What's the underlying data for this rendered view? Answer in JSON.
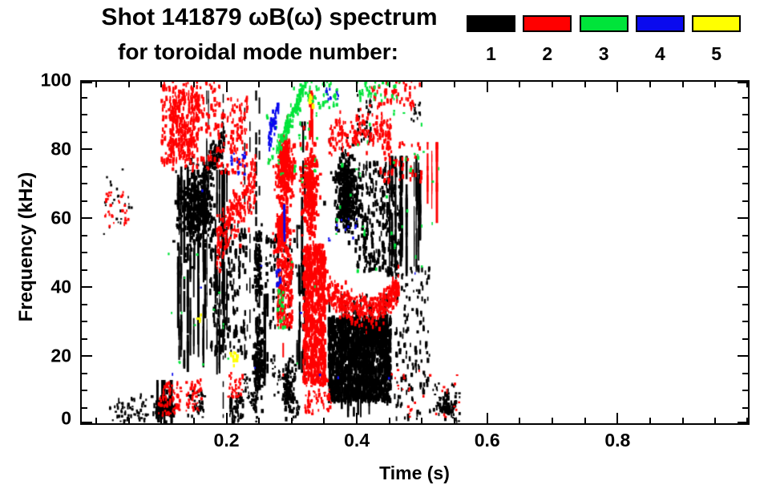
{
  "title": {
    "line1": "Shot 141879 ωB(ω) spectrum",
    "line2": "for toroidal mode number:"
  },
  "legend": {
    "modes": [
      {
        "label": "1",
        "color": "#000000"
      },
      {
        "label": "2",
        "color": "#ff0000"
      },
      {
        "label": "3",
        "color": "#00e43a"
      },
      {
        "label": "4",
        "color": "#0a0aee"
      },
      {
        "label": "5",
        "color": "#ffff00"
      }
    ]
  },
  "chart_data": {
    "type": "scatter",
    "title": "Shot 141879 ωB(ω) spectrum for toroidal mode number",
    "xlabel": "Time (s)",
    "ylabel": "Frequency (kHz)",
    "xlim": [
      -0.0245,
      1.0025
    ],
    "ylim": [
      0,
      100
    ],
    "x_major_ticks": [
      0.2,
      0.4,
      0.6,
      0.8
    ],
    "x_tick_labels": [
      "0.2",
      "0.4",
      "0.6",
      "0.8"
    ],
    "x_minor_step": 0.05,
    "x_minor_range": [
      0,
      1.0
    ],
    "y_major_ticks": [
      0,
      20,
      40,
      60,
      80,
      100
    ],
    "y_tick_labels": [
      "0",
      "20",
      "40",
      "60",
      "80",
      "100"
    ],
    "y_minor_step": 5,
    "grid": false,
    "legend_position": "top",
    "series": [
      {
        "name": "n=1",
        "color": "#000000"
      },
      {
        "name": "n=2",
        "color": "#ff0000"
      },
      {
        "name": "n=3",
        "color": "#00e43a"
      },
      {
        "name": "n=4",
        "color": "#0a0aee"
      },
      {
        "name": "n=5",
        "color": "#ffff00"
      }
    ],
    "clusters": [
      {
        "m": 1,
        "s": "sp",
        "t": [
          0.02,
          0.08
        ],
        "f": [
          1,
          8
        ],
        "n": 50,
        "h": [
          2,
          5
        ]
      },
      {
        "m": 1,
        "s": "sp",
        "t": [
          0.012,
          0.055
        ],
        "f": [
          55,
          75
        ],
        "n": 20,
        "h": [
          2,
          4
        ]
      },
      {
        "m": 1,
        "s": "vs",
        "t": [
          0.088,
          0.12
        ],
        "f": [
          0,
          13
        ],
        "cols": 7,
        "segs": 5
      },
      {
        "m": 1,
        "s": "bl",
        "t": [
          0.09,
          0.118
        ],
        "f": [
          1,
          8
        ],
        "n": 130
      },
      {
        "m": 1,
        "s": "vs",
        "t": [
          0.125,
          0.205
        ],
        "f": [
          14,
          74
        ],
        "cols": 26,
        "segs": 7
      },
      {
        "m": 1,
        "s": "bl",
        "t": [
          0.128,
          0.178
        ],
        "f": [
          52,
          74
        ],
        "n": 420
      },
      {
        "m": 1,
        "s": "sp",
        "t": [
          0.175,
          0.232
        ],
        "f": [
          20,
          58
        ],
        "n": 150,
        "h": [
          4,
          9
        ]
      },
      {
        "m": 1,
        "s": "dg",
        "t": [
          0.162,
          0.197
        ],
        "f": [
          70,
          84
        ],
        "n": 130,
        "j": 2.5,
        "h": [
          3,
          6
        ]
      },
      {
        "m": 1,
        "s": "vl",
        "t": [
          0.195
        ],
        "f": [
          2,
          96
        ],
        "w": 1.5,
        "g": 0.35
      },
      {
        "m": 1,
        "s": "sp",
        "t": [
          0.205,
          0.226
        ],
        "f": [
          1,
          9
        ],
        "n": 50,
        "h": [
          3,
          6
        ]
      },
      {
        "m": 1,
        "s": "dg",
        "t": [
          0.225,
          0.247
        ],
        "f": [
          14,
          4
        ],
        "n": 40,
        "j": 2,
        "h": [
          2,
          5
        ]
      },
      {
        "m": 1,
        "s": "vl",
        "t": [
          0.2455
        ],
        "f": [
          3,
          97
        ],
        "w": 2.5,
        "g": 0.15
      },
      {
        "m": 1,
        "s": "vl",
        "t": [
          0.2505
        ],
        "f": [
          3,
          95
        ],
        "w": 2,
        "g": 0.2
      },
      {
        "m": 1,
        "s": "bl",
        "t": [
          0.242,
          0.258
        ],
        "f": [
          6,
          30
        ],
        "n": 130
      },
      {
        "m": 1,
        "s": "bl",
        "t": [
          0.243,
          0.254
        ],
        "f": [
          33,
          58
        ],
        "n": 90
      },
      {
        "m": 1,
        "s": "vs",
        "t": [
          0.253,
          0.263
        ],
        "f": [
          9,
          38
        ],
        "cols": 3,
        "segs": 6
      },
      {
        "m": 1,
        "s": "vl",
        "t": [
          0.228
        ],
        "f": [
          18,
          92
        ],
        "w": 1.5,
        "g": 0.5
      },
      {
        "m": 1,
        "s": "vl",
        "t": [
          0.236
        ],
        "f": [
          25,
          88
        ],
        "w": 1.5,
        "g": 0.55
      },
      {
        "m": 1,
        "s": "vs",
        "t": [
          0.165,
          0.176
        ],
        "f": [
          68,
          97
        ],
        "cols": 2,
        "segs": 4
      },
      {
        "m": 1,
        "s": "sp",
        "t": [
          0.26,
          0.315
        ],
        "f": [
          28,
          55
        ],
        "n": 80,
        "h": [
          3,
          7
        ]
      },
      {
        "m": 1,
        "s": "dg",
        "t": [
          0.268,
          0.312
        ],
        "f": [
          17,
          4
        ],
        "n": 60,
        "j": 2.5,
        "h": [
          2,
          5
        ]
      },
      {
        "m": 1,
        "s": "bl",
        "t": [
          0.285,
          0.305
        ],
        "f": [
          3,
          19
        ],
        "n": 90
      },
      {
        "m": 1,
        "s": "vs",
        "t": [
          0.304,
          0.313
        ],
        "f": [
          16,
          58
        ],
        "cols": 3,
        "segs": 5
      },
      {
        "m": 1,
        "s": "vs",
        "t": [
          0.315,
          0.324
        ],
        "f": [
          10,
          88
        ],
        "cols": 3,
        "segs": 7
      },
      {
        "m": 1,
        "s": "bl",
        "t": [
          0.366,
          0.401
        ],
        "f": [
          56,
          78
        ],
        "n": 400
      },
      {
        "m": 1,
        "s": "sp",
        "t": [
          0.398,
          0.468
        ],
        "f": [
          44,
          76
        ],
        "n": 260,
        "h": [
          4,
          8
        ]
      },
      {
        "m": 1,
        "s": "vs",
        "t": [
          0.448,
          0.508
        ],
        "f": [
          43,
          78
        ],
        "cols": 13,
        "segs": 8
      },
      {
        "m": 1,
        "s": "sp",
        "t": [
          0.357,
          0.452
        ],
        "f": [
          7,
          31
        ],
        "n": 1250,
        "h": [
          4,
          9
        ],
        "w": [
          2,
          3.5
        ]
      },
      {
        "m": 1,
        "s": "vs",
        "t": [
          0.357,
          0.452
        ],
        "f": [
          1,
          38
        ],
        "cols": 22,
        "segs": 3
      },
      {
        "m": 1,
        "s": "sp",
        "t": [
          0.458,
          0.512
        ],
        "f": [
          1,
          46
        ],
        "n": 130,
        "h": [
          3,
          7
        ]
      },
      {
        "m": 1,
        "s": "sp",
        "t": [
          0.515,
          0.558
        ],
        "f": [
          1,
          12
        ],
        "n": 45,
        "h": [
          2,
          5
        ]
      },
      {
        "m": 1,
        "s": "bl",
        "t": [
          0.528,
          0.547
        ],
        "f": [
          2,
          8
        ],
        "n": 45
      },
      {
        "m": 1,
        "s": "sp",
        "t": [
          0.4,
          0.425
        ],
        "f": [
          82,
          96
        ],
        "n": 25,
        "h": [
          3,
          6
        ]
      },
      {
        "m": 1,
        "s": "sp",
        "t": [
          0.483,
          0.497
        ],
        "f": [
          88,
          94
        ],
        "n": 12,
        "h": [
          2,
          4
        ]
      },
      {
        "m": 1,
        "s": "sp",
        "t": [
          0.14,
          0.167
        ],
        "f": [
          2,
          10
        ],
        "n": 35,
        "h": [
          2,
          5
        ]
      },
      {
        "m": 2,
        "s": "sp",
        "t": [
          0.012,
          0.05
        ],
        "f": [
          57,
          68
        ],
        "n": 28,
        "h": [
          2,
          4
        ]
      },
      {
        "m": 2,
        "s": "sp",
        "t": [
          0.095,
          0.13
        ],
        "f": [
          3,
          12
        ],
        "n": 60,
        "h": [
          2,
          5
        ]
      },
      {
        "m": 2,
        "s": "sp",
        "t": [
          0.138,
          0.162
        ],
        "f": [
          4,
          13
        ],
        "n": 40,
        "h": [
          2,
          5
        ]
      },
      {
        "m": 2,
        "s": "sp",
        "t": [
          0.1,
          0.19
        ],
        "f": [
          74,
          100
        ],
        "n": 180,
        "h": [
          3,
          7
        ]
      },
      {
        "m": 2,
        "s": "sp",
        "t": [
          0.113,
          0.158
        ],
        "f": [
          76,
          96
        ],
        "n": 200,
        "h": [
          3,
          7
        ]
      },
      {
        "m": 2,
        "s": "dg",
        "t": [
          0.185,
          0.245
        ],
        "f": [
          52,
          72
        ],
        "n": 200,
        "j": 4,
        "h": [
          3,
          7
        ]
      },
      {
        "m": 2,
        "s": "sp",
        "t": [
          0.19,
          0.232
        ],
        "f": [
          73,
          95
        ],
        "n": 90,
        "h": [
          3,
          6
        ]
      },
      {
        "m": 2,
        "s": "sp",
        "t": [
          0.202,
          0.225
        ],
        "f": [
          8,
          15
        ],
        "n": 35,
        "h": [
          2,
          4
        ]
      },
      {
        "m": 2,
        "s": "bl",
        "t": [
          0.278,
          0.302
        ],
        "f": [
          66,
          84
        ],
        "n": 240
      },
      {
        "m": 2,
        "s": "bl",
        "t": [
          0.276,
          0.297
        ],
        "f": [
          48,
          64
        ],
        "n": 170
      },
      {
        "m": 2,
        "s": "sp",
        "t": [
          0.278,
          0.302
        ],
        "f": [
          28,
          48
        ],
        "n": 150,
        "h": [
          3,
          7
        ]
      },
      {
        "m": 2,
        "s": "vl",
        "t": [
          0.287
        ],
        "f": [
          14,
          40
        ],
        "w": 2,
        "g": 0.5
      },
      {
        "m": 2,
        "s": "bl",
        "t": [
          0.315,
          0.34
        ],
        "f": [
          55,
          80
        ],
        "n": 260
      },
      {
        "m": 2,
        "s": "sp",
        "t": [
          0.318,
          0.352
        ],
        "f": [
          12,
          52
        ],
        "n": 600,
        "h": [
          4,
          8
        ],
        "w": [
          2,
          3.5
        ]
      },
      {
        "m": 2,
        "s": "sp",
        "t": [
          0.32,
          0.362
        ],
        "f": [
          3,
          13
        ],
        "n": 60,
        "h": [
          2,
          5
        ]
      },
      {
        "m": 2,
        "s": "vs",
        "t": [
          0.326,
          0.341
        ],
        "f": [
          80,
          97
        ],
        "cols": 3,
        "segs": 5
      },
      {
        "m": 2,
        "s": "bd",
        "p": [
          [
            0.352,
            39
          ],
          [
            0.375,
            36
          ],
          [
            0.4,
            33.5
          ],
          [
            0.428,
            33.5
          ],
          [
            0.45,
            36.5
          ],
          [
            0.465,
            40
          ]
        ],
        "j": 2.2,
        "n": 430,
        "h": [
          3,
          6
        ]
      },
      {
        "m": 2,
        "s": "bd",
        "p": [
          [
            0.357,
            82
          ],
          [
            0.373,
            85
          ],
          [
            0.388,
            83
          ],
          [
            0.405,
            86
          ],
          [
            0.422,
            84
          ],
          [
            0.438,
            86
          ],
          [
            0.452,
            84
          ]
        ],
        "j": 2.5,
        "n": 200,
        "h": [
          3,
          6
        ]
      },
      {
        "m": 2,
        "s": "sp",
        "t": [
          0.42,
          0.5
        ],
        "f": [
          92,
          100
        ],
        "n": 55,
        "h": [
          3,
          6
        ]
      },
      {
        "m": 2,
        "s": "sp",
        "t": [
          0.43,
          0.5
        ],
        "f": [
          70,
          82
        ],
        "n": 55,
        "h": [
          3,
          6
        ]
      },
      {
        "m": 2,
        "s": "vs",
        "t": [
          0.505,
          0.528
        ],
        "f": [
          58,
          82
        ],
        "cols": 3,
        "segs": 5
      },
      {
        "m": 2,
        "s": "sp",
        "t": [
          0.45,
          0.56
        ],
        "f": [
          2,
          16
        ],
        "n": 26,
        "h": [
          2,
          4
        ]
      },
      {
        "m": 3,
        "s": "dg",
        "t": [
          0.277,
          0.318
        ],
        "f": [
          80,
          97
        ],
        "n": 130,
        "j": 1.6,
        "h": [
          3,
          6
        ]
      },
      {
        "m": 3,
        "s": "sp",
        "t": [
          0.32,
          0.37
        ],
        "f": [
          92,
          100
        ],
        "n": 45,
        "h": [
          3,
          5
        ]
      },
      {
        "m": 3,
        "s": "sp",
        "t": [
          0.4,
          0.47
        ],
        "f": [
          94,
          100
        ],
        "n": 35,
        "h": [
          3,
          5
        ]
      },
      {
        "m": 3,
        "s": "sp",
        "t": [
          0.25,
          0.34
        ],
        "f": [
          70,
          92
        ],
        "n": 28,
        "h": [
          2,
          5
        ]
      },
      {
        "m": 3,
        "s": "sp",
        "t": [
          0.278,
          0.29
        ],
        "f": [
          28,
          39
        ],
        "n": 20,
        "h": [
          3,
          6
        ]
      },
      {
        "m": 3,
        "s": "sp",
        "t": [
          0.36,
          0.53
        ],
        "f": [
          44,
          92
        ],
        "n": 35,
        "h": [
          2,
          5
        ]
      },
      {
        "m": 3,
        "s": "sp",
        "t": [
          0.1,
          0.34
        ],
        "f": [
          8,
          52
        ],
        "n": 16,
        "h": [
          2,
          4
        ]
      },
      {
        "m": 4,
        "s": "dg",
        "t": [
          0.264,
          0.28
        ],
        "f": [
          83,
          93
        ],
        "n": 45,
        "j": 1.6,
        "h": [
          3,
          6
        ]
      },
      {
        "m": 4,
        "s": "vs",
        "t": [
          0.282,
          0.292
        ],
        "f": [
          52,
          64
        ],
        "cols": 2,
        "segs": 4
      },
      {
        "m": 4,
        "s": "sp",
        "t": [
          0.202,
          0.232
        ],
        "f": [
          72,
          81
        ],
        "n": 18,
        "h": [
          2,
          5
        ]
      },
      {
        "m": 4,
        "s": "sp",
        "t": [
          0.274,
          0.284
        ],
        "f": [
          40,
          45
        ],
        "n": 12,
        "h": [
          3,
          6
        ]
      },
      {
        "m": 4,
        "s": "sp",
        "t": [
          0.352,
          0.372
        ],
        "f": [
          94,
          99
        ],
        "n": 10,
        "h": [
          2,
          4
        ]
      },
      {
        "m": 4,
        "s": "sp",
        "t": [
          0.355,
          0.4
        ],
        "f": [
          52,
          60
        ],
        "n": 10,
        "h": [
          2,
          4
        ]
      },
      {
        "m": 4,
        "s": "sp",
        "t": [
          0.1,
          0.5
        ],
        "f": [
          12,
          68
        ],
        "n": 10,
        "h": [
          2,
          4
        ]
      },
      {
        "m": 5,
        "s": "bl",
        "t": [
          0.205,
          0.218
        ],
        "f": [
          17,
          22
        ],
        "n": 10
      },
      {
        "m": 5,
        "s": "bl",
        "t": [
          0.327,
          0.333
        ],
        "f": [
          93,
          96
        ],
        "n": 6
      },
      {
        "m": 5,
        "s": "bl",
        "t": [
          0.154,
          0.161
        ],
        "f": [
          30,
          32
        ],
        "n": 5
      }
    ]
  }
}
